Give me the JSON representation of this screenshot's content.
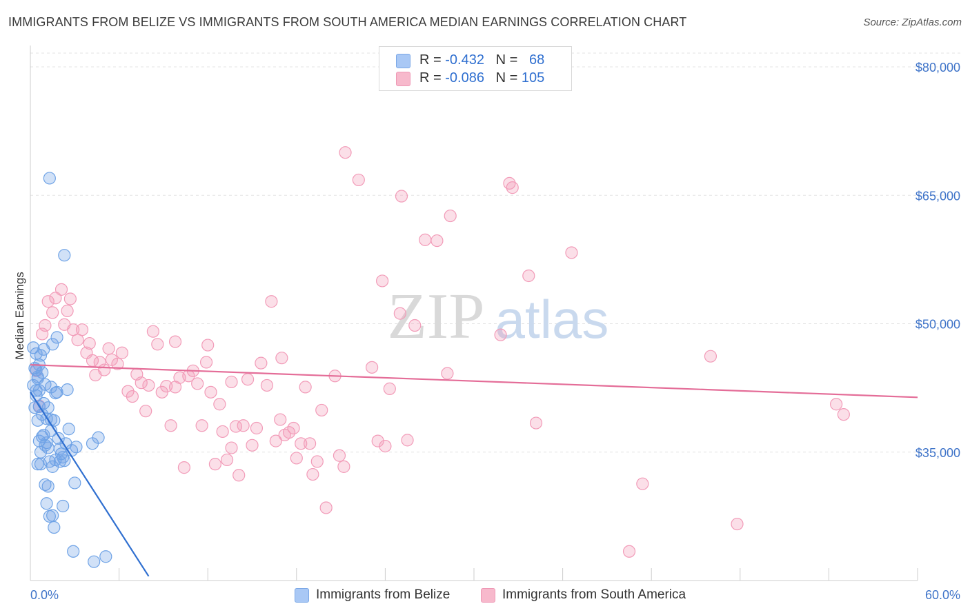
{
  "title": "IMMIGRANTS FROM BELIZE VS IMMIGRANTS FROM SOUTH AMERICA MEDIAN EARNINGS CORRELATION CHART",
  "source": "Source: ZipAtlas.com",
  "watermark": {
    "part1": "ZIP",
    "part2": "atlas"
  },
  "legend": {
    "r_label": "R =",
    "n_label": "N =",
    "belize": {
      "r": "-0.432",
      "n": "68",
      "color": "#a9c8f5"
    },
    "south_america": {
      "r": "-0.086",
      "n": "105",
      "color": "#f7b9cc"
    }
  },
  "bottom_legend": {
    "belize": "Immigrants from Belize",
    "south_america": "Immigrants from South America"
  },
  "chart_data": {
    "type": "scatter",
    "title": "IMMIGRANTS FROM BELIZE VS IMMIGRANTS FROM SOUTH AMERICA MEDIAN EARNINGS CORRELATION CHART",
    "xlabel": "",
    "ylabel": "Median Earnings",
    "xlim": [
      0,
      60
    ],
    "ylim": [
      20000,
      82500
    ],
    "x_tick_labels": [
      "0.0%",
      "60.0%"
    ],
    "y_ticks": [
      35000,
      50000,
      65000,
      80000
    ],
    "y_tick_labels": [
      "$35,000",
      "$50,000",
      "$65,000",
      "$80,000"
    ],
    "grid": true,
    "legend_position": "top-center",
    "series": [
      {
        "name": "Immigrants from Belize",
        "color": "#6fa3e6",
        "line_color": "#2f6fd0",
        "trend": {
          "x": [
            0,
            8.0
          ],
          "y": [
            42000,
            20500
          ]
        },
        "points": [
          [
            0.2,
            42.8
          ],
          [
            0.3,
            40.2
          ],
          [
            0.4,
            44.6
          ],
          [
            0.4,
            46.5
          ],
          [
            0.5,
            43.6
          ],
          [
            0.5,
            38.7
          ],
          [
            0.6,
            45.2
          ],
          [
            0.6,
            42.2
          ],
          [
            0.7,
            35.0
          ],
          [
            0.7,
            33.6
          ],
          [
            0.8,
            36.8
          ],
          [
            0.8,
            44.3
          ],
          [
            0.9,
            40.7
          ],
          [
            0.9,
            47.0
          ],
          [
            1.0,
            42.9
          ],
          [
            1.0,
            31.2
          ],
          [
            1.1,
            36.1
          ],
          [
            1.1,
            29.0
          ],
          [
            1.2,
            35.5
          ],
          [
            1.2,
            40.2
          ],
          [
            1.3,
            27.5
          ],
          [
            1.3,
            33.9
          ],
          [
            1.4,
            38.8
          ],
          [
            1.4,
            42.6
          ],
          [
            1.5,
            47.6
          ],
          [
            1.5,
            33.3
          ],
          [
            1.6,
            26.2
          ],
          [
            1.6,
            38.7
          ],
          [
            1.7,
            34.1
          ],
          [
            1.8,
            48.4
          ],
          [
            1.8,
            42.0
          ],
          [
            1.9,
            36.6
          ],
          [
            2.0,
            35.4
          ],
          [
            2.0,
            33.9
          ],
          [
            2.2,
            34.4
          ],
          [
            2.2,
            28.7
          ],
          [
            2.3,
            34.0
          ],
          [
            2.4,
            36.0
          ],
          [
            2.5,
            42.3
          ],
          [
            2.6,
            37.7
          ],
          [
            2.8,
            35.2
          ],
          [
            2.9,
            23.4
          ],
          [
            3.0,
            31.4
          ],
          [
            3.1,
            35.6
          ],
          [
            4.2,
            36.0
          ],
          [
            4.3,
            22.2
          ],
          [
            4.6,
            36.7
          ],
          [
            5.1,
            22.8
          ],
          [
            1.3,
            67.0
          ],
          [
            2.3,
            58.0
          ],
          [
            0.4,
            42.2
          ],
          [
            0.5,
            43.8
          ],
          [
            0.6,
            40.3
          ],
          [
            0.7,
            46.3
          ],
          [
            0.8,
            39.4
          ],
          [
            1.0,
            35.8
          ],
          [
            1.1,
            38.9
          ],
          [
            1.2,
            31.0
          ],
          [
            1.4,
            37.5
          ],
          [
            0.3,
            44.8
          ],
          [
            0.2,
            47.2
          ],
          [
            0.6,
            36.3
          ],
          [
            0.9,
            37.0
          ],
          [
            1.5,
            27.6
          ],
          [
            0.4,
            41.6
          ],
          [
            0.5,
            33.6
          ],
          [
            1.7,
            41.9
          ],
          [
            2.1,
            34.8
          ]
        ]
      },
      {
        "name": "Immigrants from South America",
        "color": "#f29bb8",
        "line_color": "#e46d98",
        "trend": {
          "x": [
            0,
            60
          ],
          "y": [
            45200,
            41400
          ]
        },
        "points": [
          [
            0.4,
            44.5
          ],
          [
            0.6,
            40.4
          ],
          [
            0.8,
            48.8
          ],
          [
            1.0,
            49.8
          ],
          [
            1.2,
            52.6
          ],
          [
            1.5,
            51.3
          ],
          [
            1.7,
            53.0
          ],
          [
            2.1,
            54.0
          ],
          [
            2.3,
            49.9
          ],
          [
            2.5,
            51.5
          ],
          [
            2.7,
            52.9
          ],
          [
            2.9,
            49.3
          ],
          [
            3.2,
            48.1
          ],
          [
            3.5,
            49.3
          ],
          [
            3.8,
            46.6
          ],
          [
            4.0,
            47.7
          ],
          [
            4.2,
            45.7
          ],
          [
            4.4,
            44.0
          ],
          [
            4.7,
            45.5
          ],
          [
            5.0,
            44.6
          ],
          [
            5.3,
            47.1
          ],
          [
            5.5,
            45.8
          ],
          [
            5.9,
            45.3
          ],
          [
            6.2,
            46.6
          ],
          [
            6.6,
            42.1
          ],
          [
            6.9,
            41.5
          ],
          [
            7.2,
            44.1
          ],
          [
            7.5,
            43.1
          ],
          [
            7.8,
            39.8
          ],
          [
            8.0,
            42.8
          ],
          [
            8.3,
            49.1
          ],
          [
            8.6,
            47.6
          ],
          [
            8.9,
            42.0
          ],
          [
            9.2,
            42.7
          ],
          [
            9.5,
            38.1
          ],
          [
            9.8,
            42.6
          ],
          [
            10.1,
            43.7
          ],
          [
            10.4,
            33.2
          ],
          [
            10.7,
            43.9
          ],
          [
            11.0,
            44.5
          ],
          [
            11.3,
            43.0
          ],
          [
            11.6,
            38.1
          ],
          [
            11.9,
            45.5
          ],
          [
            12.2,
            42.0
          ],
          [
            12.5,
            33.6
          ],
          [
            12.8,
            40.6
          ],
          [
            13.0,
            37.4
          ],
          [
            13.3,
            34.1
          ],
          [
            13.6,
            35.5
          ],
          [
            13.9,
            38.0
          ],
          [
            14.1,
            32.3
          ],
          [
            14.4,
            38.1
          ],
          [
            14.7,
            43.5
          ],
          [
            15.0,
            35.8
          ],
          [
            15.3,
            37.8
          ],
          [
            15.6,
            45.4
          ],
          [
            16.0,
            42.8
          ],
          [
            16.3,
            52.6
          ],
          [
            16.6,
            36.3
          ],
          [
            16.9,
            38.8
          ],
          [
            17.2,
            37.0
          ],
          [
            17.5,
            37.3
          ],
          [
            17.8,
            37.8
          ],
          [
            18.0,
            34.3
          ],
          [
            18.3,
            36.0
          ],
          [
            18.6,
            42.6
          ],
          [
            18.9,
            36.0
          ],
          [
            19.1,
            32.4
          ],
          [
            19.4,
            33.9
          ],
          [
            19.7,
            39.9
          ],
          [
            20.0,
            28.5
          ],
          [
            20.6,
            43.9
          ],
          [
            20.9,
            34.6
          ],
          [
            21.2,
            33.3
          ],
          [
            23.5,
            36.3
          ],
          [
            24.0,
            35.7
          ],
          [
            24.3,
            42.4
          ],
          [
            25.5,
            36.4
          ],
          [
            26.0,
            49.8
          ],
          [
            27.5,
            59.7
          ],
          [
            28.2,
            44.2
          ],
          [
            25.0,
            51.2
          ],
          [
            23.8,
            55.0
          ],
          [
            23.1,
            44.9
          ],
          [
            22.2,
            66.8
          ],
          [
            21.3,
            70.0
          ],
          [
            25.1,
            64.9
          ],
          [
            26.7,
            59.8
          ],
          [
            28.4,
            62.6
          ],
          [
            32.4,
            66.4
          ],
          [
            32.6,
            65.9
          ],
          [
            31.8,
            48.7
          ],
          [
            33.7,
            55.6
          ],
          [
            34.2,
            38.4
          ],
          [
            36.6,
            58.3
          ],
          [
            40.5,
            23.4
          ],
          [
            41.4,
            31.3
          ],
          [
            46.0,
            46.2
          ],
          [
            47.8,
            26.6
          ],
          [
            54.5,
            40.6
          ],
          [
            55.0,
            39.4
          ],
          [
            9.8,
            47.9
          ],
          [
            12.0,
            47.5
          ],
          [
            13.6,
            43.2
          ],
          [
            17.0,
            46.0
          ]
        ]
      }
    ]
  }
}
